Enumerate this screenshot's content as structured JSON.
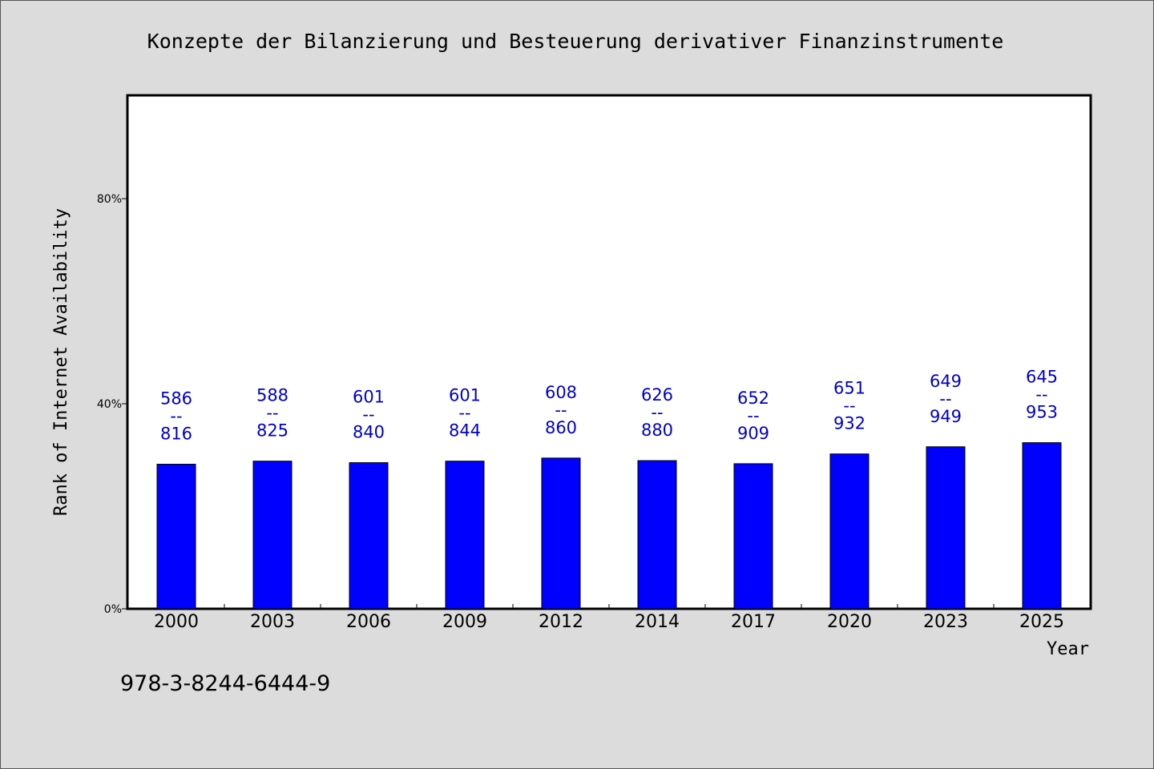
{
  "chart_data": {
    "type": "bar",
    "title": "Konzepte der Bilanzierung und Besteuerung derivativer Finanzinstrumente",
    "xlabel": "Year",
    "ylabel": "Rank of Internet Availability",
    "footer": "978-3-8244-6444-9",
    "categories": [
      "2000",
      "2003",
      "2006",
      "2009",
      "2012",
      "2014",
      "2017",
      "2020",
      "2023",
      "2025"
    ],
    "values": [
      28.2,
      28.8,
      28.5,
      28.8,
      29.4,
      28.9,
      28.3,
      30.2,
      31.6,
      32.4
    ],
    "bar_labels": [
      {
        "top": "586",
        "mid": "--",
        "bottom": "816"
      },
      {
        "top": "588",
        "mid": "--",
        "bottom": "825"
      },
      {
        "top": "601",
        "mid": "--",
        "bottom": "840"
      },
      {
        "top": "601",
        "mid": "--",
        "bottom": "844"
      },
      {
        "top": "608",
        "mid": "--",
        "bottom": "860"
      },
      {
        "top": "626",
        "mid": "--",
        "bottom": "880"
      },
      {
        "top": "652",
        "mid": "--",
        "bottom": "909"
      },
      {
        "top": "651",
        "mid": "--",
        "bottom": "932"
      },
      {
        "top": "649",
        "mid": "--",
        "bottom": "949"
      },
      {
        "top": "645",
        "mid": "--",
        "bottom": "953"
      }
    ],
    "yticks": [
      {
        "value": 0,
        "label": "0%"
      },
      {
        "value": 40,
        "label": "40%"
      },
      {
        "value": 80,
        "label": "80%"
      }
    ],
    "ylim": [
      0,
      100
    ],
    "bar_color": "#0000ff",
    "label_color": "#0000cc",
    "grid": false,
    "legend": "none"
  }
}
